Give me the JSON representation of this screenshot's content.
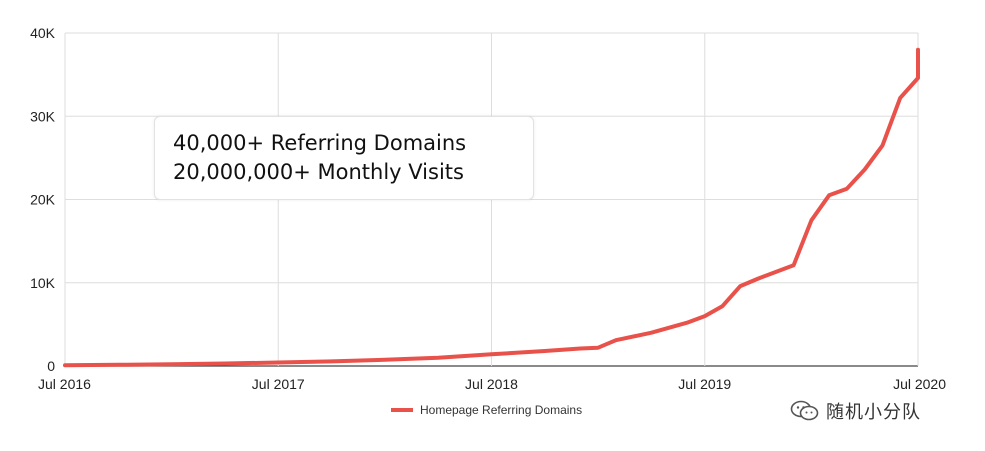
{
  "chart_data": {
    "type": "line",
    "x_ticks": [
      "Jul 2016",
      "Jul 2017",
      "Jul 2018",
      "Jul 2019",
      "Jul 2020"
    ],
    "y_ticks": [
      "0",
      "10K",
      "20K",
      "30K",
      "40K"
    ],
    "ylim": [
      0,
      40000
    ],
    "xlim": [
      "2016-07",
      "2020-07"
    ],
    "grid": true,
    "legend_position": "bottom",
    "series": [
      {
        "name": "Homepage Referring Domains",
        "color": "#e8524a",
        "points": [
          {
            "x": "2016-07",
            "y": 100
          },
          {
            "x": "2016-10",
            "y": 150
          },
          {
            "x": "2017-01",
            "y": 220
          },
          {
            "x": "2017-04",
            "y": 300
          },
          {
            "x": "2017-07",
            "y": 420
          },
          {
            "x": "2017-10",
            "y": 550
          },
          {
            "x": "2018-01",
            "y": 750
          },
          {
            "x": "2018-04",
            "y": 1000
          },
          {
            "x": "2018-07",
            "y": 1400
          },
          {
            "x": "2018-10",
            "y": 1800
          },
          {
            "x": "2018-12",
            "y": 2100
          },
          {
            "x": "2019-01",
            "y": 2200
          },
          {
            "x": "2019-02",
            "y": 3100
          },
          {
            "x": "2019-04",
            "y": 4000
          },
          {
            "x": "2019-06",
            "y": 5200
          },
          {
            "x": "2019-07",
            "y": 6000
          },
          {
            "x": "2019-08",
            "y": 7200
          },
          {
            "x": "2019-09",
            "y": 9600
          },
          {
            "x": "2019-10",
            "y": 10500
          },
          {
            "x": "2019-12",
            "y": 12100
          },
          {
            "x": "2020-01",
            "y": 17500
          },
          {
            "x": "2020-02",
            "y": 20500
          },
          {
            "x": "2020-03",
            "y": 21300
          },
          {
            "x": "2020-04",
            "y": 23600
          },
          {
            "x": "2020-05",
            "y": 26500
          },
          {
            "x": "2020-06",
            "y": 32200
          },
          {
            "x": "2020-07",
            "y": 34600
          },
          {
            "x": "2020-07",
            "y": 38000
          }
        ]
      }
    ],
    "annotation": {
      "lines": [
        "40,000+ Referring Domains",
        "20,000,000+ Monthly Visits"
      ]
    }
  },
  "watermark": {
    "text": "随机小分队",
    "icon": "wechat-icon"
  }
}
